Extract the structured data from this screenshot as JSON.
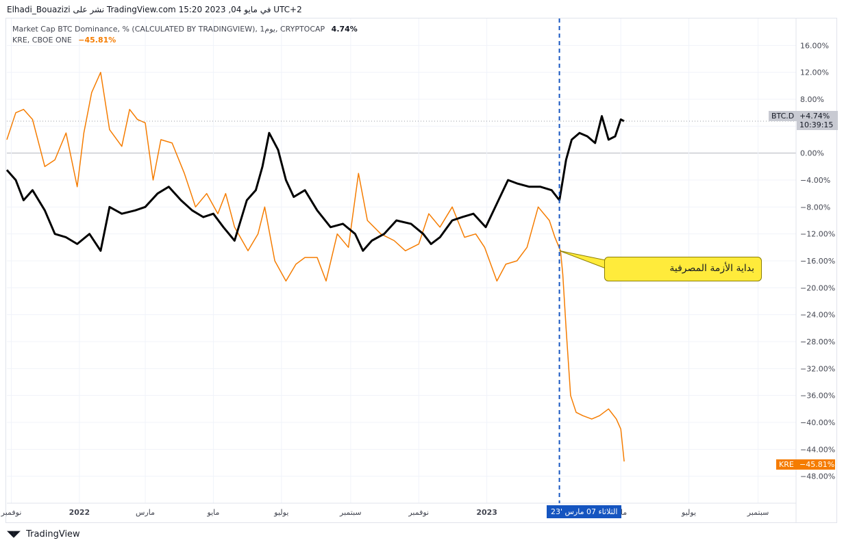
{
  "header": {
    "text": "Elhadi_Bouazizi نشر على TradingView.com في مايو 04, 2023 15:20 UTC+2"
  },
  "legend": {
    "btc_label": "Market Cap BTC Dominance, % (CALCULATED BY TRADINGVIEW), 1يوم, CRYPTOCAP",
    "btc_value": "4.74%",
    "kre_label": "KRE, CBOE ONE",
    "kre_value": "−45.81%"
  },
  "tags": {
    "btc_name": "BTC.D",
    "btc_value": "+4.74%",
    "btc_time": "10:39:15",
    "kre_name": "KRE",
    "kre_value": "−45.81%",
    "date_cursor": "الثلاثاء 07 مارس '23"
  },
  "annotation": {
    "text": "بداية الأزمة المصرفية"
  },
  "footer": {
    "logo_text": "TradingView",
    "logo_icon": "tradingview-logo-icon"
  },
  "colors": {
    "btc": "#000000",
    "kre": "#f57c00",
    "marker": "#1555c0",
    "callout": "#ffeb3b"
  },
  "chart_data": {
    "type": "line",
    "y_unit": "%",
    "ylim": [
      -52,
      20
    ],
    "y_ticks": [
      "16.00%",
      "12.00%",
      "8.00%",
      "4.00%",
      "0.00%",
      "−4.00%",
      "−8.00%",
      "−12.00%",
      "−16.00%",
      "−20.00%",
      "−24.00%",
      "−28.00%",
      "−32.00%",
      "−36.00%",
      "−40.00%",
      "−44.00%",
      "−48.00%"
    ],
    "y_tick_values": [
      16,
      12,
      8,
      4,
      0,
      -4,
      -8,
      -12,
      -16,
      -20,
      -24,
      -28,
      -32,
      -36,
      -40,
      -44,
      -48
    ],
    "x_ticks": [
      "نوفمبر",
      "2022",
      "مارس",
      "مايو",
      "يوليو",
      "سبتمبر",
      "نوفمبر",
      "2023",
      "مايو",
      "يوليو",
      "سبتمبر"
    ],
    "x_tick_dates": [
      "2021-11-01",
      "2022-01-01",
      "2022-03-01",
      "2022-05-01",
      "2022-07-01",
      "2022-09-01",
      "2022-11-01",
      "2023-01-01",
      "2023-05-01",
      "2023-07-01",
      "2023-09-01"
    ],
    "xlim": [
      "2021-10-28",
      "2023-10-05"
    ],
    "marker_date": "2023-03-07",
    "grid": true,
    "series": [
      {
        "name": "BTC.D",
        "x": [
          "2021-10-28",
          "2021-11-05",
          "2021-11-12",
          "2021-11-20",
          "2021-12-01",
          "2021-12-10",
          "2021-12-20",
          "2021-12-30",
          "2022-01-10",
          "2022-01-20",
          "2022-01-28",
          "2022-02-08",
          "2022-02-20",
          "2022-03-01",
          "2022-03-12",
          "2022-03-22",
          "2022-04-02",
          "2022-04-12",
          "2022-04-22",
          "2022-05-01",
          "2022-05-10",
          "2022-05-20",
          "2022-05-31",
          "2022-06-08",
          "2022-06-14",
          "2022-06-20",
          "2022-06-28",
          "2022-07-05",
          "2022-07-12",
          "2022-07-22",
          "2022-08-02",
          "2022-08-14",
          "2022-08-25",
          "2022-09-05",
          "2022-09-12",
          "2022-09-20",
          "2022-10-01",
          "2022-10-12",
          "2022-10-25",
          "2022-11-05",
          "2022-11-12",
          "2022-11-20",
          "2022-12-01",
          "2022-12-10",
          "2022-12-20",
          "2022-12-31",
          "2023-01-10",
          "2023-01-20",
          "2023-01-28",
          "2023-02-08",
          "2023-02-18",
          "2023-02-28",
          "2023-03-07",
          "2023-03-10",
          "2023-03-13",
          "2023-03-18",
          "2023-03-25",
          "2023-04-01",
          "2023-04-08",
          "2023-04-14",
          "2023-04-20",
          "2023-04-26",
          "2023-05-01",
          "2023-05-04"
        ],
        "y": [
          -2.5,
          -4.0,
          -7.0,
          -5.5,
          -8.5,
          -12.0,
          -12.5,
          -13.5,
          -12.0,
          -14.5,
          -8.0,
          -9.0,
          -8.5,
          -8.0,
          -6.0,
          -5.0,
          -7.0,
          -8.5,
          -9.5,
          -9.0,
          -11.0,
          -13.0,
          -7.0,
          -5.5,
          -2.0,
          3.0,
          0.5,
          -4.0,
          -6.5,
          -5.5,
          -8.5,
          -11.0,
          -10.5,
          -12.0,
          -14.5,
          -13.0,
          -12.0,
          -10.0,
          -10.5,
          -12.0,
          -13.5,
          -12.5,
          -10.0,
          -9.5,
          -9.0,
          -11.0,
          -7.5,
          -4.0,
          -4.5,
          -5.0,
          -5.0,
          -5.5,
          -7.0,
          -4.0,
          -1.0,
          2.0,
          3.0,
          2.5,
          1.5,
          5.5,
          2.0,
          2.5,
          5.0,
          4.74
        ]
      },
      {
        "name": "KRE",
        "x": [
          "2021-10-28",
          "2021-11-05",
          "2021-11-12",
          "2021-11-20",
          "2021-12-01",
          "2021-12-10",
          "2021-12-20",
          "2021-12-30",
          "2022-01-05",
          "2022-01-12",
          "2022-01-20",
          "2022-01-28",
          "2022-02-08",
          "2022-02-15",
          "2022-02-22",
          "2022-03-01",
          "2022-03-08",
          "2022-03-15",
          "2022-03-25",
          "2022-04-05",
          "2022-04-15",
          "2022-04-25",
          "2022-05-05",
          "2022-05-12",
          "2022-05-20",
          "2022-06-01",
          "2022-06-10",
          "2022-06-16",
          "2022-06-25",
          "2022-07-05",
          "2022-07-14",
          "2022-07-22",
          "2022-08-02",
          "2022-08-10",
          "2022-08-20",
          "2022-08-30",
          "2022-09-08",
          "2022-09-16",
          "2022-09-28",
          "2022-10-10",
          "2022-10-20",
          "2022-11-01",
          "2022-11-10",
          "2022-11-20",
          "2022-12-01",
          "2022-12-12",
          "2022-12-22",
          "2022-12-30",
          "2023-01-10",
          "2023-01-18",
          "2023-01-28",
          "2023-02-06",
          "2023-02-16",
          "2023-02-26",
          "2023-03-03",
          "2023-03-08",
          "2023-03-10",
          "2023-03-13",
          "2023-03-17",
          "2023-03-22",
          "2023-03-28",
          "2023-04-05",
          "2023-04-12",
          "2023-04-20",
          "2023-04-27",
          "2023-05-01",
          "2023-05-04"
        ],
        "y": [
          2.0,
          6.0,
          6.5,
          5.0,
          -2.0,
          -1.0,
          3.0,
          -5.0,
          3.0,
          9.0,
          12.0,
          3.5,
          1.0,
          6.5,
          5.0,
          4.5,
          -4.0,
          2.0,
          1.5,
          -3.0,
          -8.0,
          -6.0,
          -9.0,
          -6.0,
          -11.0,
          -14.5,
          -12.0,
          -8.0,
          -16.0,
          -19.0,
          -16.5,
          -15.5,
          -15.5,
          -19.0,
          -12.0,
          -14.0,
          -3.0,
          -10.0,
          -12.0,
          -13.0,
          -14.5,
          -13.5,
          -9.0,
          -11.0,
          -8.0,
          -12.5,
          -12.0,
          -14.0,
          -19.0,
          -16.5,
          -16.0,
          -14.0,
          -8.0,
          -10.0,
          -12.5,
          -14.5,
          -18.0,
          -26.0,
          -36.0,
          -38.5,
          -39.0,
          -39.5,
          -39.0,
          -38.0,
          -39.5,
          -41.0,
          -45.81
        ]
      }
    ]
  }
}
